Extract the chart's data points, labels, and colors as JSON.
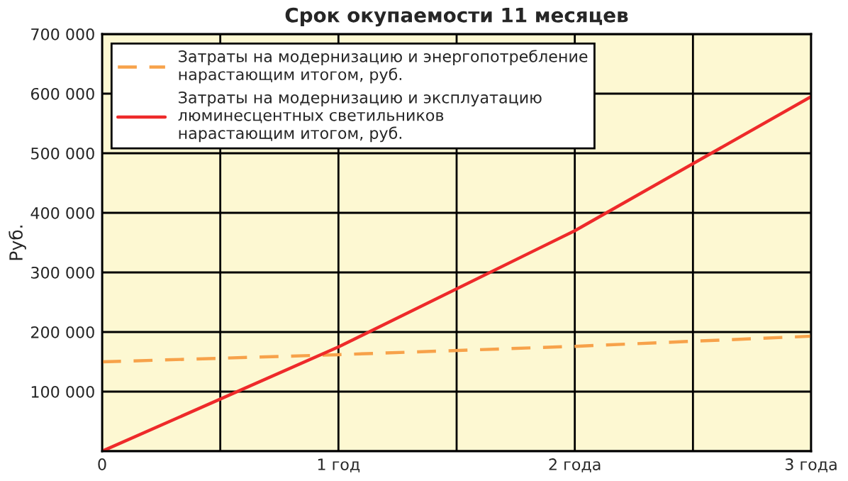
{
  "chart_data": {
    "type": "line",
    "title": "Срок окупаемости 11 месяцев",
    "ylabel": "Руб.",
    "x": [
      0,
      1,
      2,
      3
    ],
    "series": [
      {
        "name": "Затраты на модернизацию и энергопотребление\nнарастающим итогом, руб.",
        "color": "#f7a24a",
        "line_style": "dashed",
        "values": [
          150000,
          162000,
          176000,
          193000
        ]
      },
      {
        "name": "Затраты на модернизацию и эксплуатацию\nлюминесцентных светильников\nнарастающим итогом, руб.",
        "color": "#ee2a2a",
        "line_style": "solid",
        "values": [
          0,
          175000,
          370000,
          595000
        ]
      }
    ],
    "xlim": [
      0,
      3
    ],
    "xticks": [
      0,
      {
        "value": 0.5,
        "label": null
      },
      {
        "value": 1,
        "label": "1 год"
      },
      {
        "value": 1.5,
        "label": null
      },
      {
        "value": 2,
        "label": "2 года"
      },
      {
        "value": 2.5,
        "label": null
      },
      {
        "value": 3,
        "label": "3 года"
      }
    ],
    "ylim": [
      0,
      700000
    ],
    "yticks": [
      {
        "value": 0,
        "label": null
      },
      {
        "value": 100000,
        "label": "100 000"
      },
      {
        "value": 200000,
        "label": "200 000"
      },
      {
        "value": 300000,
        "label": "300 000"
      },
      {
        "value": 400000,
        "label": "400 000"
      },
      {
        "value": 500000,
        "label": "500 000"
      },
      {
        "value": 600000,
        "label": "600 000"
      },
      {
        "value": 700000,
        "label": "700 000"
      }
    ],
    "grid": true,
    "legend": "top left",
    "marker": "none"
  }
}
